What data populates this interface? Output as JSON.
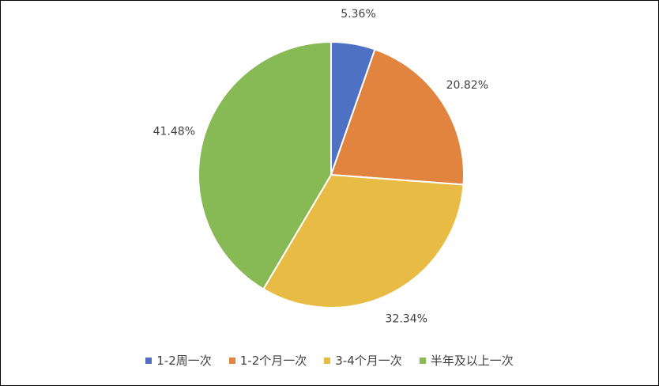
{
  "chart_data": {
    "type": "pie",
    "categories": [
      "1-2周一次",
      "1-2个月一次",
      "3-4个月一次",
      "半年及以上一次"
    ],
    "values": [
      5.36,
      20.82,
      32.34,
      41.48
    ],
    "value_labels": [
      "5.36%",
      "20.82%",
      "32.34%",
      "41.48%"
    ],
    "colors": [
      "#4f71c3",
      "#e0843f",
      "#e8bb45",
      "#87b955"
    ],
    "legend": "bottom"
  }
}
